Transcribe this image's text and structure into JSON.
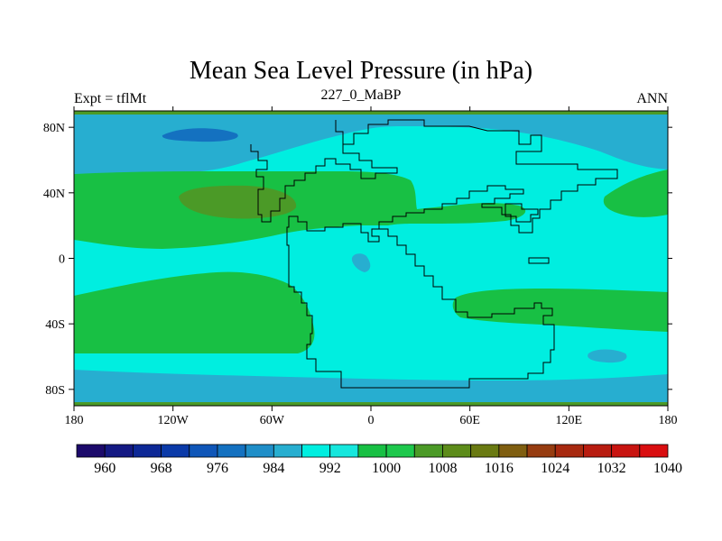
{
  "chart_data": {
    "type": "heatmap",
    "title": "Mean Sea Level Pressure (in hPa)",
    "left_label": "Expt = tflMt",
    "center_label": "227_0_MaBP",
    "right_label": "ANN",
    "x_ticks": [
      {
        "value": -180,
        "label": "180"
      },
      {
        "value": -120,
        "label": "120W"
      },
      {
        "value": -60,
        "label": "60W"
      },
      {
        "value": 0,
        "label": "0"
      },
      {
        "value": 60,
        "label": "60E"
      },
      {
        "value": 120,
        "label": "120E"
      },
      {
        "value": 180,
        "label": "180"
      }
    ],
    "y_ticks": [
      {
        "value": 80,
        "label": "80N"
      },
      {
        "value": 40,
        "label": "40N"
      },
      {
        "value": 0,
        "label": "0"
      },
      {
        "value": -40,
        "label": "40S"
      },
      {
        "value": -80,
        "label": "80S"
      }
    ],
    "xlim": [
      -180,
      180
    ],
    "ylim": [
      -90,
      90
    ],
    "colorbar": {
      "colors": [
        "#1c0a6b",
        "#141983",
        "#0d2896",
        "#0b3aa8",
        "#0f56b8",
        "#1471c0",
        "#1f8ec8",
        "#27aed0",
        "#00eee0",
        "#16e7dd",
        "#18c044",
        "#1ec84c",
        "#4b9a27",
        "#5d8c1a",
        "#6a7a12",
        "#7f5e10",
        "#963c10",
        "#a7290f",
        "#b81c10",
        "#c81410",
        "#d90e10"
      ],
      "tick_labels": [
        "960",
        "968",
        "976",
        "984",
        "992",
        "1000",
        "1008",
        "1016",
        "1024",
        "1032",
        "1040"
      ],
      "unit": "hPa"
    },
    "field_regions": [
      {
        "level": "984-988",
        "color": "#1f8ec8",
        "region": "polar north band"
      },
      {
        "level": "980-984",
        "color": "#1471c0",
        "region": "north Pacific low"
      },
      {
        "level": "1004-1008",
        "color": "#18c044",
        "region": "northern subtropical high belt"
      },
      {
        "level": "1012-1016",
        "color": "#4b9a27",
        "region": "central Pacific high"
      },
      {
        "level": "1004-1008",
        "color": "#18c044",
        "region": "southern subtropical high belt"
      },
      {
        "level": "984-988",
        "color": "#1f8ec8",
        "region": "southern polar band"
      },
      {
        "level": "996-1004",
        "color": "#00eee0",
        "region": "tropics and Pangaea interior"
      }
    ]
  }
}
